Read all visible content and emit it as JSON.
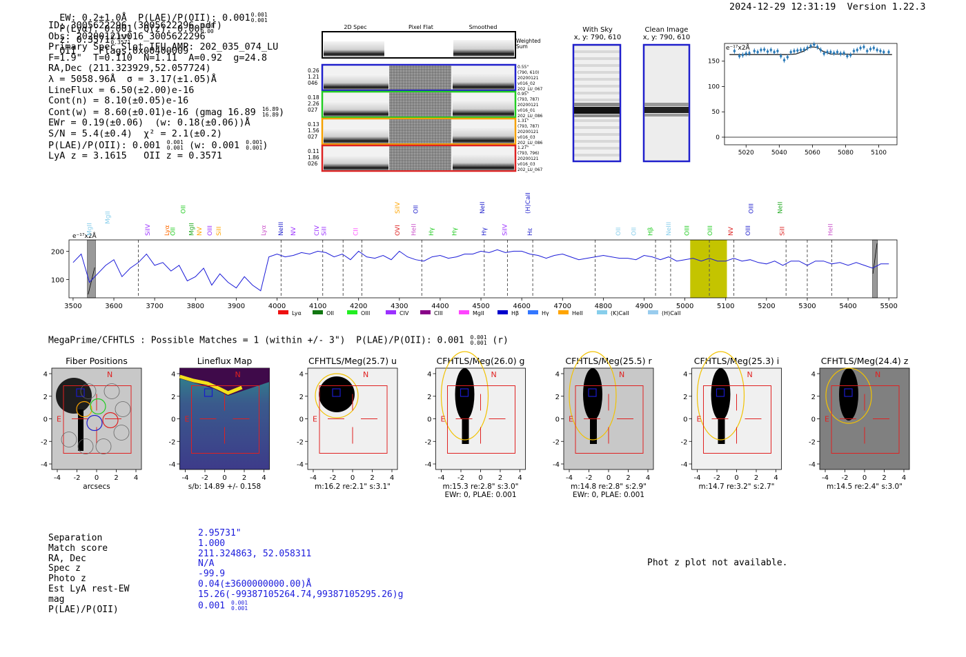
{
  "header": {
    "ew": "EW: 0.2±1.0Å  P(LAE)/P(OII): 0.001",
    "ew_frac_top": "0.001",
    "ew_frac_bot": "0.001",
    "plya": "P(Lyα): 0.001  Q(z): 0.00",
    "q_frac_top": "0.00",
    "q_frac_bot": "0.00",
    "z": "z: 0.3571",
    "z_frac_top": "0.3571",
    "z_frac_bot": "0.3571",
    "z_tail": "OII    Flags:0x00400009",
    "datetime": "2024-12-29 12:31:19  Version 1.22.3"
  },
  "info": {
    "lines": [
      "ID: 3005622296 (3005622296.pdf)",
      "Obs: 20200121v016_3005622296",
      "Primary Spec_Slot_IFU_AMP: 202_035_074_LU",
      "F=1.9\"  T=0.110  N=1.11  A=0.92  g=24.8",
      "RA,Dec (211.323929,52.057724)",
      "λ = 5058.96Å  σ = 3.17(±1.05)Å",
      "LineFlux = 6.50(±2.00)e-16",
      "Cont(n) = 8.10(±0.05)e-16"
    ],
    "contw": "Cont(w) = 8.60(±0.01)e-16 (gmag 16.89",
    "contw_top": "16.89",
    "contw_bot": "16.89",
    "contw_tail": ")",
    "lines2": [
      "EWr = 0.19(±0.06)  (w: 0.18(±0.06))Å",
      "S/N = 5.4(±0.4)  χ² = 2.1(±0.2)"
    ],
    "plae": "P(LAE)/P(OII): 0.001",
    "plae_top": "0.001",
    "plae_bot": "0.001",
    "plae_w": "(w: 0.001",
    "plae_w_top": "0.001",
    "plae_w_bot": "0.001",
    "plae_tail": ")",
    "lyaz": "LyA z = 3.1615   OII z = 0.3571"
  },
  "cutouts": {
    "col_2d": "2D Spec",
    "col_flat": "Pixel Flat",
    "col_smooth": "Smoothed",
    "weighted": "Weighted\nSum",
    "rows": [
      {
        "left": [
          "0.26",
          "1.21",
          "046"
        ],
        "right": [
          "0.55\"",
          "(790, 610)",
          "20200121",
          "v016_02",
          "202_LU_067"
        ],
        "color": "#1f1fcc"
      },
      {
        "left": [
          "0.18",
          "2.26",
          "027"
        ],
        "right": [
          "0.95\"",
          "(793, 787)",
          "20200121",
          "v016_01",
          "202_LU_086"
        ],
        "color": "#22cc22"
      },
      {
        "left": [
          "0.13",
          "1.56",
          "027"
        ],
        "right": [
          "1.31\"",
          "(793, 787)",
          "20200121",
          "v016_03",
          "202_LU_086"
        ],
        "color": "#f5a000"
      },
      {
        "left": [
          "0.11",
          "1.86",
          "026"
        ],
        "right": [
          "1.27\"",
          "(793, 796)",
          "20200121",
          "v016_03",
          "202_LU_067"
        ],
        "color": "#dd2222"
      }
    ],
    "with_sky": "With Sky",
    "with_sky_xy": "x, y: 790, 610",
    "clean": "Clean Image",
    "clean_xy": "x, y: 790, 610"
  },
  "small_chart": {
    "type": "scatter",
    "unit_label": "e⁻¹⁷x2Å",
    "x_ticks": [
      5020,
      5040,
      5060,
      5080,
      5100
    ],
    "y_ticks": [
      0,
      50,
      100,
      150
    ],
    "xlim": [
      5007,
      5111
    ],
    "ylim": [
      -15,
      185
    ],
    "points_x": [
      5013,
      5016,
      5018,
      5020,
      5022,
      5025,
      5027,
      5029,
      5031,
      5033,
      5035,
      5037,
      5039,
      5041,
      5043,
      5045,
      5047,
      5049,
      5051,
      5053,
      5055,
      5057,
      5059,
      5061,
      5063,
      5065,
      5067,
      5069,
      5071,
      5073,
      5075,
      5077,
      5079,
      5081,
      5083,
      5085,
      5087,
      5089,
      5091,
      5093,
      5095,
      5097,
      5099,
      5101,
      5103,
      5106
    ],
    "points_y": [
      170,
      160,
      162,
      165,
      166,
      170,
      168,
      172,
      173,
      169,
      172,
      168,
      170,
      160,
      152,
      158,
      168,
      170,
      171,
      172,
      173,
      176,
      180,
      183,
      178,
      172,
      165,
      168,
      168,
      166,
      168,
      165,
      166,
      160,
      162,
      170,
      172,
      176,
      178,
      170,
      174,
      176,
      172,
      170,
      168,
      168
    ],
    "model_x": [
      5010,
      5045,
      5050,
      5055,
      5058,
      5060,
      5063,
      5066,
      5071,
      5108
    ],
    "model_y": [
      163,
      163,
      164,
      170,
      177,
      178,
      177,
      170,
      164,
      163
    ]
  },
  "chart_data": {
    "type": "line",
    "ylabel_unit": "e⁻¹⁷x2Å",
    "xlim": [
      3490,
      5520
    ],
    "ylim": [
      35,
      240
    ],
    "x_ticks": [
      3500,
      3600,
      3700,
      3800,
      3900,
      4000,
      4100,
      4200,
      4300,
      4400,
      4500,
      4600,
      4700,
      4800,
      4900,
      5000,
      5100,
      5200,
      5300,
      5400,
      5500
    ],
    "y_ticks": [
      100,
      200
    ],
    "x": [
      3500,
      3520,
      3540,
      3560,
      3580,
      3600,
      3620,
      3640,
      3660,
      3680,
      3700,
      3720,
      3740,
      3760,
      3780,
      3800,
      3820,
      3840,
      3860,
      3880,
      3900,
      3920,
      3940,
      3960,
      3980,
      4000,
      4020,
      4040,
      4060,
      4080,
      4100,
      4120,
      4140,
      4160,
      4180,
      4200,
      4220,
      4240,
      4260,
      4280,
      4300,
      4320,
      4340,
      4360,
      4380,
      4400,
      4420,
      4440,
      4460,
      4480,
      4500,
      4520,
      4540,
      4560,
      4580,
      4600,
      4620,
      4640,
      4660,
      4680,
      4700,
      4720,
      4740,
      4760,
      4780,
      4800,
      4820,
      4840,
      4860,
      4880,
      4900,
      4920,
      4940,
      4960,
      4980,
      5000,
      5020,
      5040,
      5060,
      5080,
      5100,
      5120,
      5140,
      5160,
      5180,
      5200,
      5220,
      5240,
      5260,
      5280,
      5300,
      5320,
      5340,
      5360,
      5380,
      5400,
      5420,
      5440,
      5460,
      5480,
      5500
    ],
    "y": [
      160,
      190,
      90,
      120,
      150,
      170,
      110,
      140,
      160,
      190,
      150,
      160,
      130,
      150,
      95,
      110,
      140,
      80,
      120,
      90,
      70,
      110,
      80,
      60,
      180,
      190,
      180,
      185,
      195,
      190,
      200,
      195,
      180,
      190,
      170,
      200,
      180,
      175,
      185,
      170,
      200,
      180,
      170,
      165,
      180,
      185,
      175,
      180,
      190,
      190,
      200,
      195,
      205,
      195,
      200,
      200,
      190,
      185,
      175,
      185,
      190,
      180,
      170,
      175,
      180,
      185,
      180,
      175,
      175,
      170,
      185,
      180,
      170,
      180,
      165,
      170,
      175,
      165,
      175,
      165,
      165,
      175,
      165,
      170,
      160,
      155,
      165,
      150,
      165,
      165,
      150,
      165,
      165,
      155,
      160,
      150,
      160,
      150,
      140,
      155,
      155
    ],
    "emission_lines": [
      {
        "name": "MgII",
        "x": 3545,
        "color": "#87ceeb",
        "row": 2
      },
      {
        "name": "MgII",
        "x": 3590,
        "color": "#87ceeb",
        "row": 1
      },
      {
        "name": "SiIV",
        "x": 3688,
        "color": "#9b30ff",
        "row": 2
      },
      {
        "name": "Lyα",
        "x": 3735,
        "color": "#ff6a00",
        "row": 2
      },
      {
        "name": "OII",
        "x": 3750,
        "color": "#22cc22",
        "row": 2
      },
      {
        "name": "OII",
        "x": 3775,
        "color": "#22cc22",
        "row": 0
      },
      {
        "name": "MgII",
        "x": 3795,
        "color": "#22aa22",
        "row": 2
      },
      {
        "name": "NV",
        "x": 3815,
        "color": "#ffa500",
        "row": 2
      },
      {
        "name": "OIII",
        "x": 3840,
        "color": "#9b30ff",
        "row": 2
      },
      {
        "name": "SiII",
        "x": 3862,
        "color": "#ffa500",
        "row": 2
      },
      {
        "name": "Lyα",
        "x": 3972,
        "color": "#cc55cc",
        "row": 2
      },
      {
        "name": "NeIII",
        "x": 4014,
        "color": "#1f1fcc",
        "row": 2
      },
      {
        "name": "NV",
        "x": 4045,
        "color": "#9b30ff",
        "row": 2
      },
      {
        "name": "CIV",
        "x": 4102,
        "color": "#9b30ff",
        "row": 2
      },
      {
        "name": "SiII",
        "x": 4120,
        "color": "#9b30ff",
        "row": 2
      },
      {
        "name": "CII",
        "x": 4198,
        "color": "#ff55ff",
        "row": 2
      },
      {
        "name": "SiIV",
        "x": 4300,
        "color": "#ffa500",
        "row": 0
      },
      {
        "name": "OVI",
        "x": 4300,
        "color": "#dd2222",
        "row": 2
      },
      {
        "name": "HeII",
        "x": 4340,
        "color": "#cc55cc",
        "row": 2
      },
      {
        "name": "OII",
        "x": 4345,
        "color": "#1f1fcc",
        "row": 0
      },
      {
        "name": "Hγ",
        "x": 4383,
        "color": "#22cc22",
        "row": 2
      },
      {
        "name": "Hγ",
        "x": 4440,
        "color": "#22cc22",
        "row": 2
      },
      {
        "name": "NeII",
        "x": 4508,
        "color": "#1f1fcc",
        "row": 0
      },
      {
        "name": "Hγ",
        "x": 4513,
        "color": "#1f1fcc",
        "row": 2
      },
      {
        "name": "SiIV",
        "x": 4563,
        "color": "#9b30ff",
        "row": 2
      },
      {
        "name": "(H)CaII",
        "x": 4620,
        "color": "#1f1fcc",
        "row": 0
      },
      {
        "name": "Hε",
        "x": 4625,
        "color": "#1f1fcc",
        "row": 2
      },
      {
        "name": "OII",
        "x": 4842,
        "color": "#87ceeb",
        "row": 2
      },
      {
        "name": "OII",
        "x": 4880,
        "color": "#87ceeb",
        "row": 2
      },
      {
        "name": "Hβ",
        "x": 4920,
        "color": "#22cc22",
        "row": 2
      },
      {
        "name": "NeIII",
        "x": 4965,
        "color": "#87ceeb",
        "row": 2
      },
      {
        "name": "OIII",
        "x": 5010,
        "color": "#22cc22",
        "row": 2
      },
      {
        "name": "OIII",
        "x": 5067,
        "color": "#22cc22",
        "row": 2
      },
      {
        "name": "NV",
        "x": 5117,
        "color": "#dd2222",
        "row": 2
      },
      {
        "name": "OIII",
        "x": 5167,
        "color": "#1f1fcc",
        "row": 0
      },
      {
        "name": "OIII",
        "x": 5160,
        "color": "#1f1fcc",
        "row": 2
      },
      {
        "name": "NeII",
        "x": 5238,
        "color": "#22aa22",
        "row": 0
      },
      {
        "name": "SiII",
        "x": 5243,
        "color": "#dd2222",
        "row": 2
      },
      {
        "name": "HeII",
        "x": 5362,
        "color": "#cc55cc",
        "row": 2
      }
    ],
    "dashed_lines": [
      3660,
      4010,
      4112,
      4162,
      4208,
      4355,
      4508,
      4565,
      4627,
      4780,
      4928,
      4965,
      5060,
      5120,
      5248,
      5300,
      5360
    ],
    "highlight": [
      5013,
      5103
    ],
    "legend": [
      {
        "name": "Lyα",
        "color": "#ee1111"
      },
      {
        "name": "OII",
        "color": "#117711"
      },
      {
        "name": "OIII",
        "color": "#22ee22"
      },
      {
        "name": "CIV",
        "color": "#9b30ff"
      },
      {
        "name": "CIII",
        "color": "#880088"
      },
      {
        "name": "MgII",
        "color": "#ff44ff"
      },
      {
        "name": "Hβ",
        "color": "#0000cc"
      },
      {
        "name": "Hγ",
        "color": "#3377ff"
      },
      {
        "name": "HeII",
        "color": "#ffa500"
      },
      {
        "name": "(K)CaII",
        "color": "#87ceeb"
      },
      {
        "name": "(H)CaII",
        "color": "#99ccee"
      }
    ]
  },
  "megaprime": {
    "title": "MegaPrime/CFHTLS : Possible Matches = 1 (within +/- 3\")  P(LAE)/P(OII): 0.001",
    "title_top": "0.001",
    "title_bot": "0.001",
    "title_tail": "(r)",
    "panels": [
      {
        "title": "Fiber Positions",
        "cap1": "arcsecs",
        "cap2": ""
      },
      {
        "title": "Lineflux Map",
        "cap1": "s/b: 14.89 +/- 0.158",
        "cap2": ""
      },
      {
        "title": "CFHTLS/Meg(25.7) u",
        "cap1": "m:16.2  re:2.1\"  s:3.1\"",
        "cap2": ""
      },
      {
        "title": "CFHTLS/Meg(26.0) g",
        "cap1": "m:15.3  re:2.8\"  s:3.0\"",
        "cap2": "EWr: 0, PLAE: 0.001"
      },
      {
        "title": "CFHTLS/Meg(25.5) r",
        "cap1": "m:14.8  re:2.8\"  s:2.9\"",
        "cap2": "EWr: 0, PLAE: 0.001"
      },
      {
        "title": "CFHTLS/Meg(25.3) i",
        "cap1": "m:14.7  re:3.2\"  s:2.7\"",
        "cap2": ""
      },
      {
        "title": "CFHTLS/Meg(24.4) z",
        "cap1": "m:14.5  re:2.4\"  s:3.0\"",
        "cap2": ""
      }
    ],
    "ticks": [
      "-4",
      "-2",
      "0",
      "2",
      "4"
    ],
    "yticks": [
      "4",
      "2",
      "0",
      "-2",
      "-4"
    ],
    "n_label": "N",
    "e_label": "E"
  },
  "match": {
    "labels": [
      "Separation",
      "Match score",
      "RA, Dec",
      "Spec z",
      "Photo z",
      "Est LyA rest-EW",
      "mag",
      "P(LAE)/P(OII)"
    ],
    "values": [
      "2.95731\"",
      "1.000",
      "211.324863, 52.058311",
      "N/A",
      "-99.9",
      "0.04(±3600000000.00)Å",
      "15.26(-99387105264.74,99387105295.26)g"
    ],
    "plae_value": "0.001",
    "plae_top": "0.001",
    "plae_bot": "0.001",
    "photz_msg": "Phot z plot not available."
  }
}
